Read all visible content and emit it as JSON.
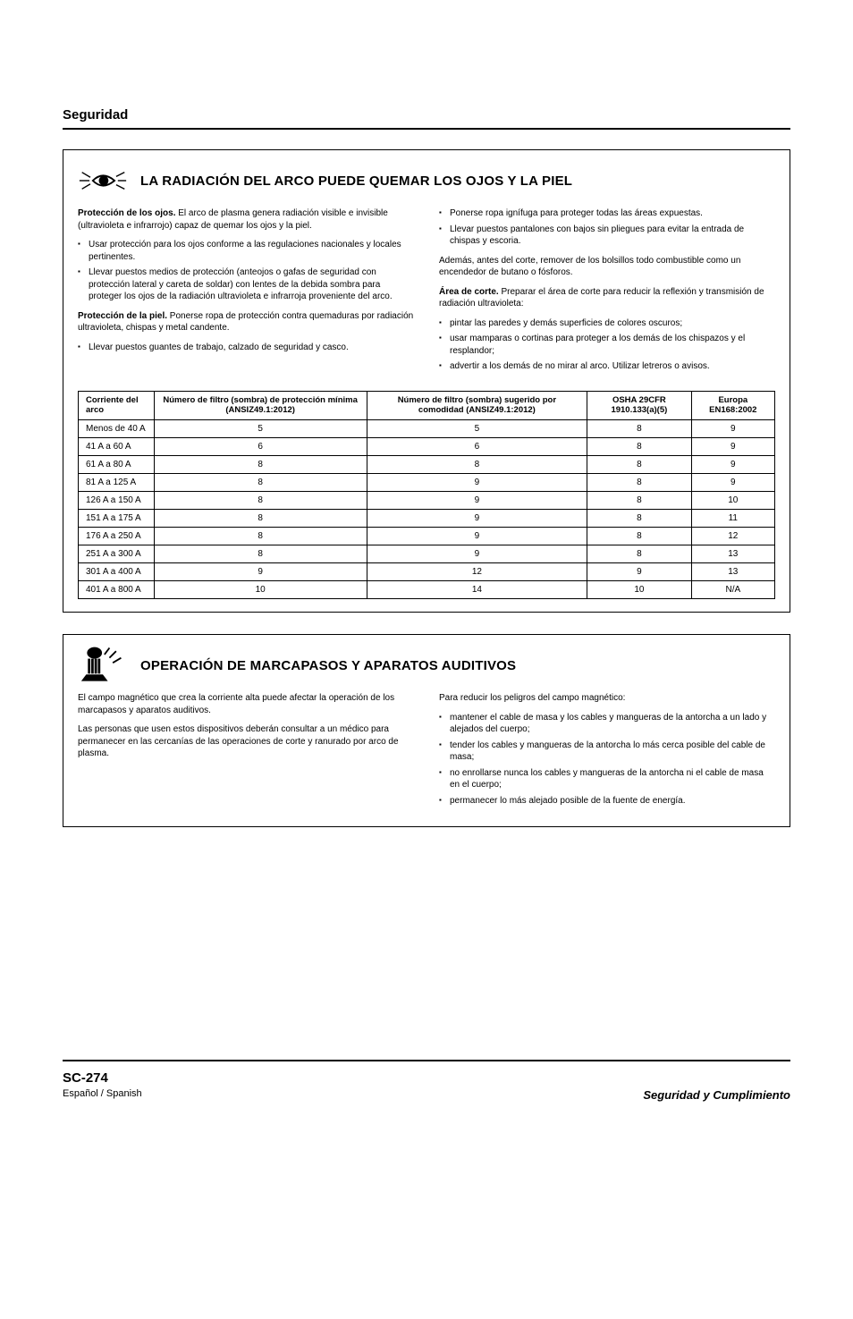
{
  "header": {
    "title": "Seguridad"
  },
  "section1": {
    "title": "LA RADIACIÓN DEL ARCO PUEDE QUEMAR LOS OJOS Y LA PIEL",
    "icon_name": "eye-radiation-icon",
    "left": {
      "p1_bold": "Protección de los ojos.",
      "p1_rest": " El arco de plasma genera radiación visible e invisible (ultravioleta e infrarrojo) capaz de quemar los ojos y la piel.",
      "bullets_a": [
        "Usar protección para los ojos conforme a las regulaciones nacionales y locales pertinentes.",
        "Llevar puestos medios de protección (anteojos o gafas de seguridad con protección lateral y careta de soldar) con lentes de la debida sombra para proteger los ojos de la radiación ultravioleta e infrarroja proveniente del arco."
      ],
      "p2_bold": "Protección de la piel.",
      "p2_rest": " Ponerse ropa de protección contra quemaduras por radiación ultravioleta, chispas y metal candente.",
      "bullets_b": [
        "Llevar puestos guantes de trabajo, calzado de seguridad y casco."
      ]
    },
    "right": {
      "bullets_a": [
        "Ponerse ropa ignífuga para proteger todas las áreas expuestas.",
        "Llevar puestos pantalones con bajos sin pliegues para evitar la entrada de chispas y escoria."
      ],
      "p1": "Además, antes del corte, remover de los bolsillos todo combustible como un encendedor de butano o fósforos.",
      "p2_bold": "Área de corte.",
      "p2_rest": " Preparar el área de corte para reducir la reflexión y transmisión de radiación ultravioleta:",
      "bullets_b": [
        "pintar las paredes y demás superficies de colores oscuros;",
        "usar mamparas o cortinas para proteger a los demás de los chispazos y el resplandor;",
        "advertir a los demás de no mirar al arco. Utilizar letreros o avisos."
      ]
    },
    "table": {
      "columns": [
        "Corriente del arco",
        "Número de filtro (sombra) de protección mínima (ANSIZ49.1:2012)",
        "Número de filtro (sombra) sugerido por comodidad (ANSIZ49.1:2012)",
        "OSHA 29CFR 1910.133(a)(5)",
        "Europa EN168:2002"
      ],
      "rows": [
        [
          "Menos de 40 A",
          "5",
          "5",
          "8",
          "9"
        ],
        [
          "41 A a 60 A",
          "6",
          "6",
          "8",
          "9"
        ],
        [
          "61 A a 80 A",
          "8",
          "8",
          "8",
          "9"
        ],
        [
          "81 A a 125 A",
          "8",
          "9",
          "8",
          "9"
        ],
        [
          "126 A a 150 A",
          "8",
          "9",
          "8",
          "10"
        ],
        [
          "151 A a 175 A",
          "8",
          "9",
          "8",
          "11"
        ],
        [
          "176 A a 250 A",
          "8",
          "9",
          "8",
          "12"
        ],
        [
          "251 A a 300 A",
          "8",
          "9",
          "8",
          "13"
        ],
        [
          "301 A a 400 A",
          "9",
          "12",
          "9",
          "13"
        ],
        [
          "401 A a 800 A",
          "10",
          "14",
          "10",
          "N/A"
        ]
      ]
    }
  },
  "section2": {
    "title": "OPERACIÓN DE MARCAPASOS Y APARATOS AUDITIVOS",
    "icon_name": "pacemaker-icon",
    "left": {
      "p1": "El campo magnético que crea la corriente alta puede afectar la operación de los marcapasos y aparatos auditivos.",
      "p2": "Las personas que usen estos dispositivos deberán consultar a un médico para permanecer en las cercanías de las operaciones de corte y ranurado por arco de plasma."
    },
    "right": {
      "p1": "Para reducir los peligros del campo magnético:",
      "bullets": [
        "mantener el cable de masa y los cables y mangueras de la antorcha a un lado y alejados del cuerpo;",
        "tender los cables y mangueras de la antorcha lo más cerca posible del cable de masa;",
        "no enrollarse nunca los cables y mangueras de la antorcha ni el cable de masa en el cuerpo;",
        "permanecer lo más alejado posible de la fuente de energía."
      ]
    }
  },
  "footer": {
    "code": "SC-274",
    "lang": "Español / Spanish",
    "right": "Seguridad y Cumplimiento"
  },
  "colors": {
    "text": "#000000",
    "background": "#ffffff",
    "border": "#000000"
  }
}
